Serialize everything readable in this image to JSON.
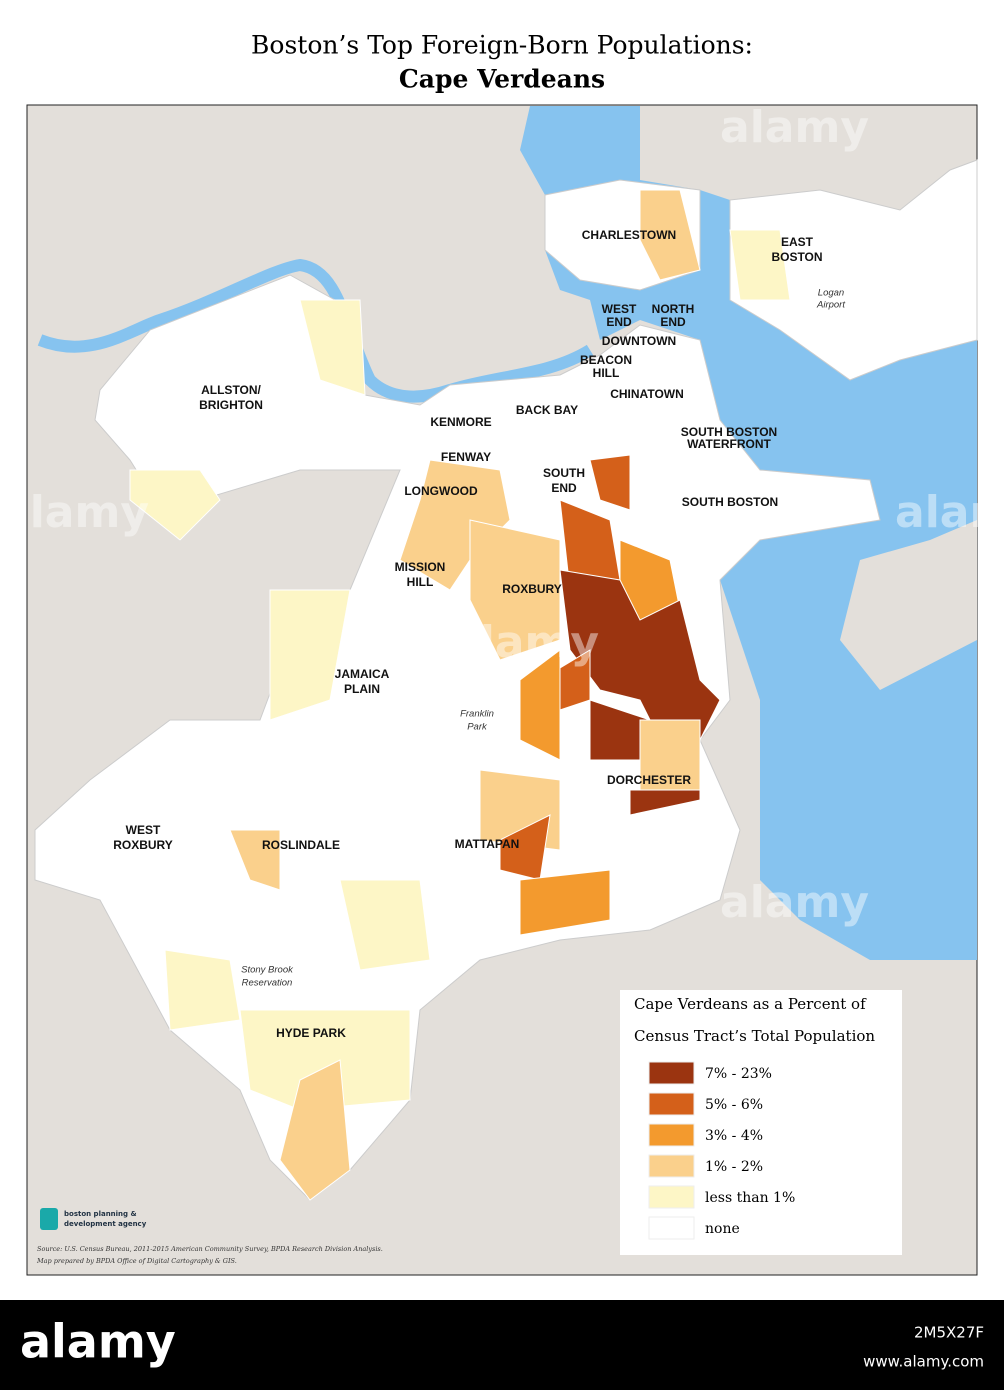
{
  "header": {
    "title": "Boston’s Top Foreign-Born Populations:",
    "subtitle": "Cape Verdeans"
  },
  "map": {
    "neighborhoods": [
      "CHARLESTOWN",
      "EAST",
      "BOSTON",
      "WEST",
      "END",
      "NORTH",
      "END",
      "DOWNTOWN",
      "BEACON",
      "HILL",
      "CHINATOWN",
      "ALLSTON/",
      "BRIGHTON",
      "KENMORE",
      "BACK BAY",
      "SOUTH BOSTON",
      "WATERFRONT",
      "FENWAY",
      "SOUTH",
      "END",
      "LONGWOOD",
      "SOUTH BOSTON",
      "MISSION",
      "HILL",
      "ROXBURY",
      "JAMAICA",
      "PLAIN",
      "DORCHESTER",
      "WEST",
      "ROXBURY",
      "ROSLINDALE",
      "MATTAPAN",
      "HYDE PARK"
    ],
    "places": [
      "Logan",
      "Airport",
      "Franklin",
      "Park",
      "Stony Brook",
      "Reservation"
    ]
  },
  "legend": {
    "title_lines": [
      "Cape Verdeans as a Percent of",
      "Census Tract’s Total Population"
    ],
    "items": [
      {
        "label": "7% - 23%",
        "color": "#9b3410"
      },
      {
        "label": "5% - 6%",
        "color": "#d4601a"
      },
      {
        "label": "3% - 4%",
        "color": "#f39a2e"
      },
      {
        "label": "1% - 2%",
        "color": "#fad08c"
      },
      {
        "label": "less than 1%",
        "color": "#fdf6c6"
      },
      {
        "label": "none",
        "color": "#ffffff"
      }
    ]
  },
  "logo": {
    "lines": [
      "boston planning &",
      "development agency"
    ]
  },
  "source": {
    "lines": [
      "Source: U.S. Census Bureau, 2011-2015 American Community Survey, BPDA Research Division Analysis.",
      "Map prepared by BPDA Office of Digital Cartography & GIS."
    ]
  },
  "watermark": "alamy",
  "footer": {
    "image_id": "2M5X27F",
    "site": "www.alamy.com"
  }
}
